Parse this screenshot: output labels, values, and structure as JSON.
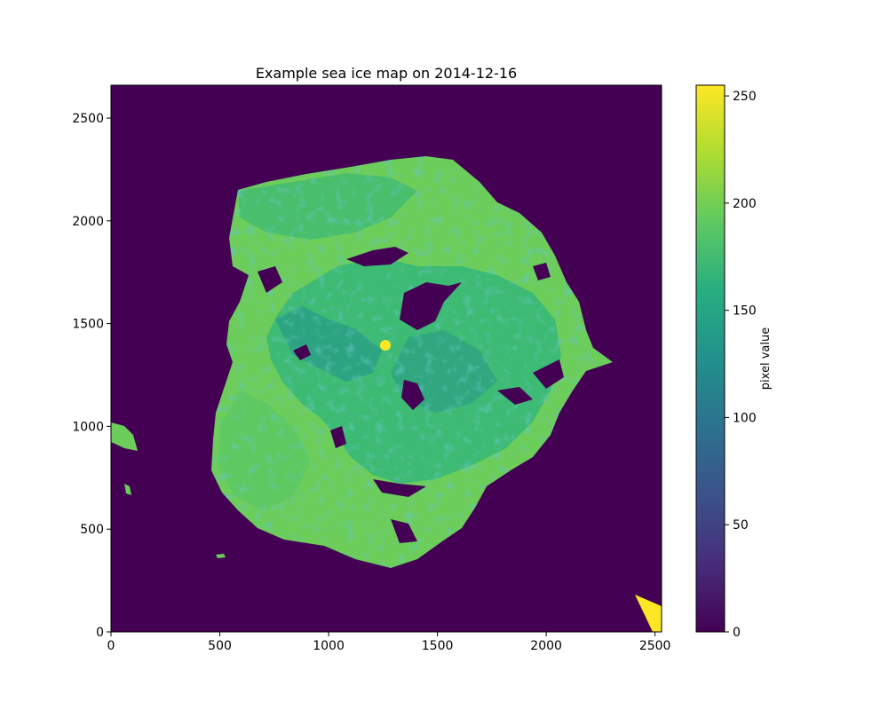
{
  "chart_data": {
    "type": "heatmap",
    "title": "Example sea ice map on 2014-12-16",
    "xlabel": "",
    "ylabel": "",
    "xlim": [
      0,
      2530
    ],
    "ylim": [
      0,
      2660
    ],
    "x_ticks": [
      0,
      500,
      1000,
      1500,
      2000,
      2500
    ],
    "y_ticks": [
      0,
      500,
      1000,
      1500,
      2000,
      2500
    ],
    "colorbar": {
      "label": "pixel value",
      "colormap": "viridis",
      "range": [
        0,
        255
      ],
      "ticks": [
        0,
        50,
        100,
        150,
        200,
        250
      ]
    },
    "regions": [
      {
        "name": "open water background",
        "value": 0
      },
      {
        "name": "sea ice pack",
        "value_range": [
          120,
          220
        ],
        "typical_value": 195
      },
      {
        "name": "pole hole",
        "value": 255,
        "center": [
          1260,
          1390
        ]
      },
      {
        "name": "corner fill",
        "value": 255
      }
    ],
    "colors": {
      "background": "#440154",
      "ice_main": "#6ccd5a",
      "ice_mid": "#2eb37c",
      "ice_dark": "#21918c",
      "saturated": "#fde725"
    }
  }
}
